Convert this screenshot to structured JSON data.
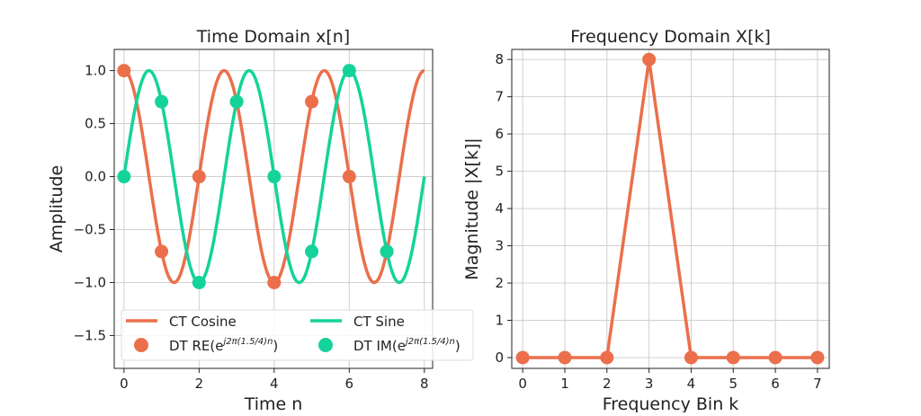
{
  "colors": {
    "cosine": "#eb6f4b",
    "sine": "#14d39a",
    "grid": "#d0d0d0"
  },
  "chart_data": [
    {
      "type": "line",
      "title": "Time Domain x[n]",
      "xlabel": "Time n",
      "ylabel": "Amplitude",
      "xlim": [
        -0.26,
        8.22
      ],
      "ylim": [
        -1.81,
        1.2
      ],
      "xticks": [
        0,
        2,
        4,
        6,
        8
      ],
      "yticks": [
        1.0,
        0.5,
        0.0,
        -0.5,
        -1.0,
        -1.5
      ],
      "ytick_labels": [
        "1.0",
        "0.5",
        "0.0",
        "−0.5",
        "−1.0",
        "−1.5"
      ],
      "grid": true,
      "legend_position": "lower-left",
      "continuous_frequency": 0.375,
      "continuous_range": [
        0,
        8
      ],
      "series": [
        {
          "name": "CT Cosine",
          "kind": "line",
          "function": "cos",
          "color": "#eb6f4b"
        },
        {
          "name": "CT Sine",
          "kind": "line",
          "function": "sin",
          "color": "#14d39a"
        },
        {
          "name": "DT RE(e^{j2π(1.5/4)n})",
          "label_main": "DT RE(e",
          "label_sup": "j2π(1.5/4)n",
          "label_end": ")",
          "kind": "points",
          "color": "#eb6f4b",
          "x": [
            0,
            1,
            2,
            3,
            4,
            5,
            6,
            7
          ],
          "y": [
            1.0,
            -0.707,
            0.0,
            0.707,
            -1.0,
            0.707,
            0.0,
            -0.707
          ]
        },
        {
          "name": "DT IM(e^{j2π(1.5/4)n})",
          "label_main": "DT IM(e",
          "label_sup": "j2π(1.5/4)n",
          "label_end": ")",
          "kind": "points",
          "color": "#14d39a",
          "x": [
            0,
            1,
            2,
            3,
            4,
            5,
            6,
            7
          ],
          "y": [
            0.0,
            0.707,
            -1.0,
            0.707,
            0.0,
            -0.707,
            1.0,
            -0.707
          ]
        }
      ]
    },
    {
      "type": "line",
      "title": "Frequency Domain X[k]",
      "xlabel": "Frequency Bin k",
      "ylabel": "Magnitude |X[k]|",
      "xlim": [
        -0.26,
        7.28
      ],
      "ylim": [
        -0.29,
        8.27
      ],
      "xticks": [
        0,
        1,
        2,
        3,
        4,
        5,
        6,
        7
      ],
      "yticks": [
        0,
        1,
        2,
        3,
        4,
        5,
        6,
        7,
        8
      ],
      "grid": true,
      "series": [
        {
          "kind": "line+points",
          "color": "#eb6f4b",
          "x": [
            0,
            1,
            2,
            3,
            4,
            5,
            6,
            7
          ],
          "y": [
            0,
            0,
            0,
            8,
            0,
            0,
            0,
            0
          ]
        }
      ]
    }
  ]
}
